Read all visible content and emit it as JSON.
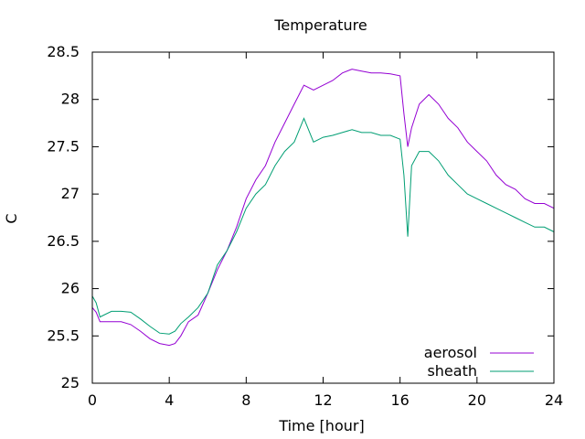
{
  "chart_data": {
    "type": "line",
    "title": "Temperature",
    "xlabel": "Time [hour]",
    "ylabel": "C",
    "xlim": [
      0,
      24
    ],
    "ylim": [
      25,
      28.5
    ],
    "xticks": [
      0,
      4,
      8,
      12,
      16,
      20,
      24
    ],
    "yticks": [
      25,
      25.5,
      26,
      26.5,
      27,
      27.5,
      28,
      28.5
    ],
    "xtick_labels": [
      "0",
      "4",
      "8",
      "12",
      "16",
      "20",
      "24"
    ],
    "ytick_labels": [
      "25",
      "25.5",
      "26",
      "26.5",
      "27",
      "27.5",
      "28",
      "28.5"
    ],
    "grid": false,
    "legend_position": "bottom-right",
    "series": [
      {
        "name": "aerosol",
        "color": "#9400d3",
        "x": [
          0,
          0.2,
          0.4,
          0.6,
          1,
          1.5,
          2,
          2.5,
          3,
          3.5,
          4,
          4.3,
          4.6,
          5,
          5.5,
          6,
          6.5,
          7,
          7.5,
          8,
          8.5,
          9,
          9.5,
          10,
          10.5,
          11,
          11.5,
          12,
          12.5,
          13,
          13.5,
          14,
          14.5,
          15,
          15.5,
          16,
          16.2,
          16.4,
          16.6,
          17,
          17.5,
          18,
          18.5,
          19,
          19.5,
          20,
          20.5,
          21,
          21.5,
          22,
          22.5,
          23,
          23.5,
          24
        ],
        "y": [
          25.8,
          25.75,
          25.65,
          25.65,
          25.65,
          25.65,
          25.62,
          25.55,
          25.47,
          25.42,
          25.4,
          25.42,
          25.5,
          25.65,
          25.72,
          25.95,
          26.2,
          26.4,
          26.65,
          26.95,
          27.15,
          27.3,
          27.55,
          27.75,
          27.95,
          28.15,
          28.1,
          28.15,
          28.2,
          28.28,
          28.32,
          28.3,
          28.28,
          28.28,
          28.27,
          28.25,
          27.85,
          27.5,
          27.7,
          27.95,
          28.05,
          27.95,
          27.8,
          27.7,
          27.55,
          27.45,
          27.35,
          27.2,
          27.1,
          27.05,
          26.95,
          26.9,
          26.9,
          26.85
        ]
      },
      {
        "name": "sheath",
        "color": "#009e73",
        "x": [
          0,
          0.2,
          0.4,
          0.6,
          1,
          1.5,
          2,
          2.5,
          3,
          3.5,
          4,
          4.3,
          4.6,
          5,
          5.5,
          6,
          6.5,
          7,
          7.5,
          8,
          8.5,
          9,
          9.5,
          10,
          10.5,
          11,
          11.5,
          12,
          12.5,
          13,
          13.5,
          14,
          14.5,
          15,
          15.5,
          16,
          16.2,
          16.4,
          16.6,
          17,
          17.5,
          18,
          18.5,
          19,
          19.5,
          20,
          20.5,
          21,
          21.5,
          22,
          22.5,
          23,
          23.5,
          24
        ],
        "y": [
          25.92,
          25.85,
          25.7,
          25.72,
          25.76,
          25.76,
          25.75,
          25.68,
          25.6,
          25.53,
          25.52,
          25.55,
          25.63,
          25.7,
          25.8,
          25.95,
          26.25,
          26.4,
          26.6,
          26.85,
          27.0,
          27.1,
          27.3,
          27.45,
          27.55,
          27.8,
          27.55,
          27.6,
          27.62,
          27.65,
          27.68,
          27.65,
          27.65,
          27.62,
          27.62,
          27.58,
          27.2,
          26.55,
          27.3,
          27.45,
          27.45,
          27.35,
          27.2,
          27.1,
          27.0,
          26.95,
          26.9,
          26.85,
          26.8,
          26.75,
          26.7,
          26.65,
          26.65,
          26.6
        ]
      }
    ]
  }
}
